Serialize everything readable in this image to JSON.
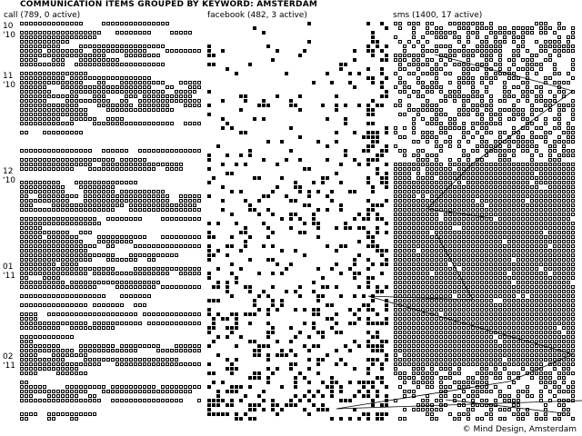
{
  "title": "COMMUNICATION ITEMS GROUPED BY KEYWORD: AMSTERDAM",
  "credit": "© Mind Design, Amsterdam",
  "chart_data": {
    "type": "scatter",
    "title": "COMMUNICATION ITEMS GROUPED BY KEYWORD: AMSTERDAM",
    "columns": [
      {
        "name": "call",
        "label": "call (789, 0 active)",
        "total": 789,
        "active": 0,
        "mark": "hollow"
      },
      {
        "name": "facebook",
        "label": "facebook (482, 3 active)",
        "total": 482,
        "active": 3,
        "mark": "filled"
      },
      {
        "name": "sms",
        "label": "sms (1400, 17 active)",
        "total": 1400,
        "active": 17,
        "mark": "hollow"
      }
    ],
    "months": [
      {
        "month": "10",
        "year": "'10"
      },
      {
        "month": "11",
        "year": "'10"
      },
      {
        "month": "12",
        "year": "'10"
      },
      {
        "month": "01",
        "year": "'11"
      },
      {
        "month": "02",
        "year": "'11"
      }
    ],
    "grid": false,
    "legend": "none"
  }
}
